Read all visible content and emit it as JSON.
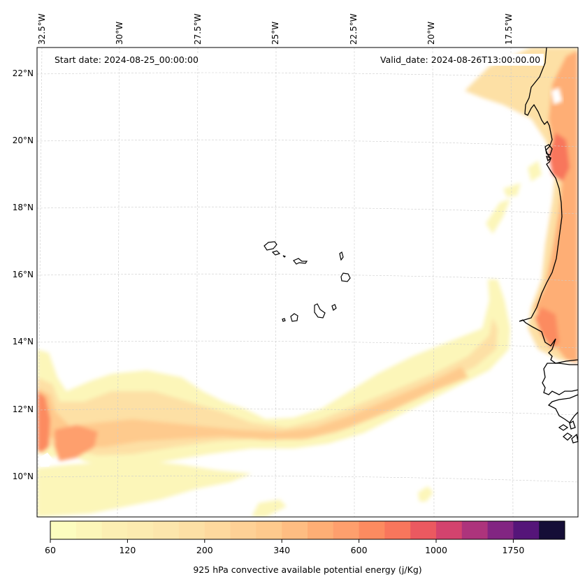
{
  "map": {
    "start_date_label": "Start date: 2024-08-25_00:00:00",
    "valid_date_label": "Valid_date: 2024-08-26T13:00:00.00",
    "longitude_labels": [
      "32.5°W",
      "30°W",
      "27.5°W",
      "25°W",
      "22.5°W",
      "20°W",
      "17.5°W"
    ],
    "latitude_labels": [
      "22°N",
      "20°N",
      "18°N",
      "16°N",
      "14°N",
      "12°N",
      "10°N"
    ],
    "field": "925 hPa convective available potential energy",
    "features": [
      "Cape Verde islands",
      "West African coastline (Mauritania, Senegal, Gambia, Guinea-Bissau)"
    ]
  },
  "colorbar": {
    "title": "925 hPa convective available potential energy (j/Kg)",
    "tick_labels": [
      "60",
      "120",
      "200",
      "340",
      "600",
      "1000",
      "1750"
    ],
    "tick_bin_index": [
      0,
      3,
      6,
      9,
      12,
      15,
      18
    ],
    "levels": [
      60,
      80,
      100,
      120,
      140,
      160,
      200,
      240,
      280,
      340,
      400,
      500,
      600,
      700,
      850,
      1000,
      1250,
      1500,
      1750,
      2000,
      2500
    ],
    "colors": [
      "#fcfdbf",
      "#fcf6b9",
      "#fcefb3",
      "#fcebb0",
      "#fce6ac",
      "#fde0a5",
      "#fed99e",
      "#fed196",
      "#feca8d",
      "#febd82",
      "#feae75",
      "#fe9f6d",
      "#fc8b60",
      "#f8765c",
      "#eb5960",
      "#d3436e",
      "#ad347c",
      "#822582",
      "#551579",
      "#150e37"
    ]
  }
}
